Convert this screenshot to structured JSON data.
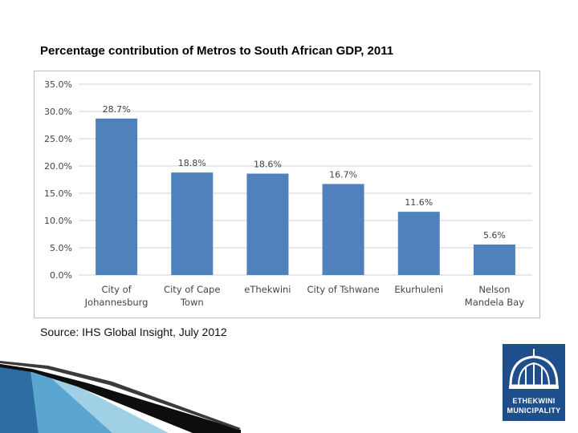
{
  "title": "Percentage contribution of Metros to South African GDP, 2011",
  "source": "Source: IHS Global Insight, July 2012",
  "logo": {
    "line1": "ETHEKWINI",
    "line2": "MUNICIPALITY",
    "icon": "city-hall-dome-icon"
  },
  "colors": {
    "bar": "#4f81bd",
    "grid": "#d0d0d0",
    "axis_text": "#444444",
    "logo": "#1f4e8c"
  },
  "chart_data": {
    "type": "bar",
    "title": "Percentage contribution of Metros to South African GDP, 2011",
    "categories": [
      [
        "City of",
        "Johannesburg"
      ],
      [
        "City of Cape",
        "Town"
      ],
      [
        "eThekwini"
      ],
      [
        "City of Tshwane"
      ],
      [
        "Ekurhuleni"
      ],
      [
        "Nelson",
        "Mandela Bay"
      ]
    ],
    "values": [
      28.7,
      18.8,
      18.6,
      16.7,
      11.6,
      5.6
    ],
    "data_labels": [
      "28.7%",
      "18.8%",
      "18.6%",
      "16.7%",
      "11.6%",
      "5.6%"
    ],
    "ylim": [
      0,
      35
    ],
    "yticks": [
      0,
      5,
      10,
      15,
      20,
      25,
      30,
      35
    ],
    "ytick_labels": [
      "0.0%",
      "5.0%",
      "10.0%",
      "15.0%",
      "20.0%",
      "25.0%",
      "30.0%",
      "35.0%"
    ],
    "xlabel": "",
    "ylabel": "",
    "grid": true,
    "legend": "none"
  }
}
